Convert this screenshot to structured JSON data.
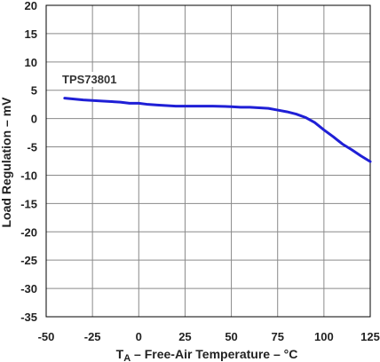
{
  "chart_data": {
    "type": "line",
    "annotation": "TPS73801",
    "xlabel_sub": "A",
    "xlabel_rest": " – Free-Air Temperature – °C",
    "xlabel_prefix": "T",
    "ylabel": "Load Regulation – mV",
    "xlim": [
      -50,
      125
    ],
    "ylim": [
      -35,
      20
    ],
    "x_ticks": [
      -50,
      -25,
      0,
      25,
      50,
      75,
      100,
      125
    ],
    "y_ticks": [
      20,
      15,
      10,
      5,
      0,
      -5,
      -10,
      -15,
      -20,
      -25,
      -30,
      -35
    ],
    "grid": true,
    "series": [
      {
        "color": "#1f1fd6",
        "x": [
          -40,
          -30,
          -20,
          -10,
          -5,
          0,
          5,
          10,
          15,
          20,
          30,
          40,
          50,
          55,
          60,
          65,
          70,
          75,
          80,
          85,
          90,
          95,
          100,
          105,
          110,
          115,
          120,
          125
        ],
        "y": [
          3.6,
          3.3,
          3.1,
          2.9,
          2.7,
          2.7,
          2.5,
          2.4,
          2.3,
          2.2,
          2.2,
          2.2,
          2.1,
          2.0,
          2.0,
          1.9,
          1.8,
          1.5,
          1.2,
          0.8,
          0.2,
          -0.7,
          -2.0,
          -3.2,
          -4.5,
          -5.5,
          -6.6,
          -7.6
        ]
      }
    ]
  }
}
